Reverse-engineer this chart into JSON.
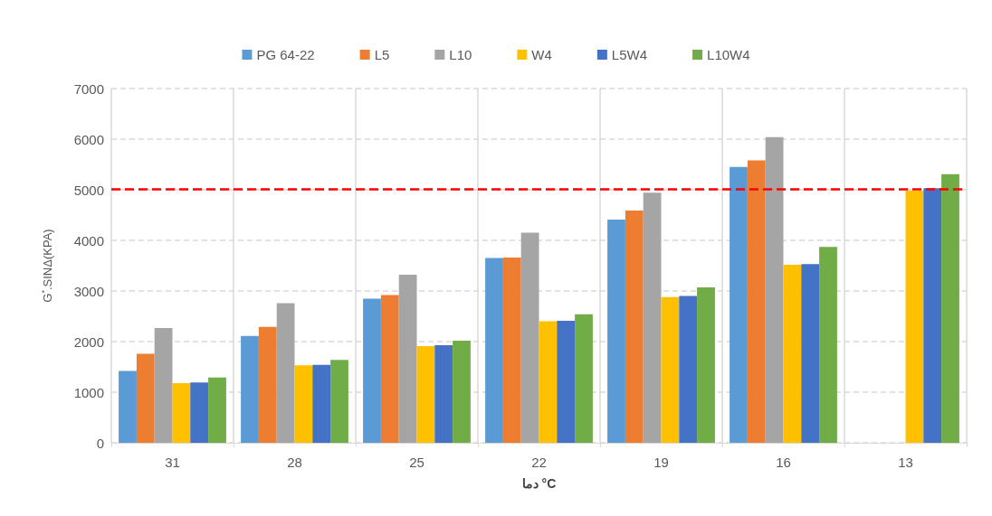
{
  "chart_data": {
    "type": "bar",
    "xlabel": "دما °C",
    "ylabel": "G$^{*}$.SINΔ(KPA)",
    "categories": [
      "31",
      "28",
      "25",
      "22",
      "19",
      "16",
      "13"
    ],
    "series": [
      {
        "name": "PG 64-22",
        "color": "#5b9bd5",
        "values": [
          1420,
          2110,
          2850,
          3650,
          4410,
          5450,
          null
        ]
      },
      {
        "name": "L5",
        "color": "#ed7d31",
        "values": [
          1760,
          2290,
          2920,
          3660,
          4590,
          5580,
          null
        ]
      },
      {
        "name": "L10",
        "color": "#a5a5a5",
        "values": [
          2270,
          2760,
          3320,
          4150,
          4940,
          6040,
          null
        ]
      },
      {
        "name": "W4",
        "color": "#ffc000",
        "values": [
          1180,
          1530,
          1910,
          2400,
          2880,
          3520,
          4980
        ]
      },
      {
        "name": "L5W4",
        "color": "#4472c4",
        "values": [
          1190,
          1540,
          1930,
          2410,
          2900,
          3530,
          5030
        ]
      },
      {
        "name": "L10W4",
        "color": "#70ad47",
        "values": [
          1290,
          1640,
          2020,
          2540,
          3070,
          3870,
          5310
        ]
      }
    ],
    "ylim": [
      0,
      7000
    ],
    "yticks": [
      0,
      1000,
      2000,
      3000,
      4000,
      5000,
      6000,
      7000
    ],
    "grid": true,
    "legend": "top",
    "ref_lines": [
      {
        "axis": "y",
        "value": 5020,
        "color": "#ff0000",
        "line_style": "dashed"
      }
    ]
  }
}
